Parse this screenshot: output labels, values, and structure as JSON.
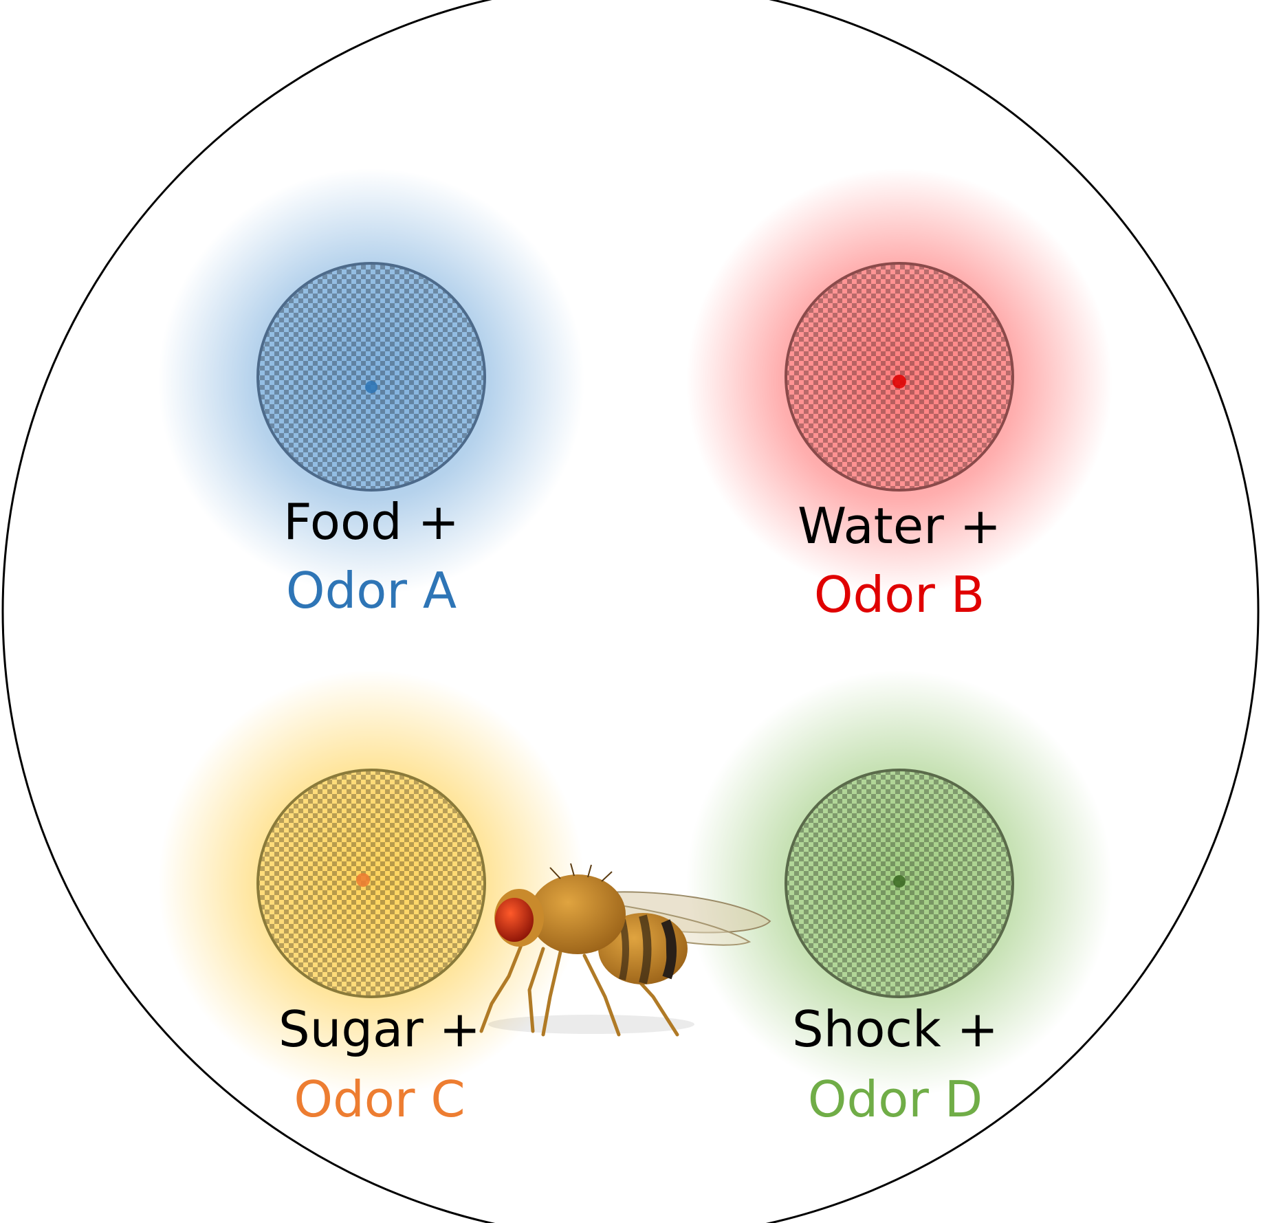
{
  "stations": [
    {
      "id": "food",
      "stimulus": "Food +",
      "odor": "Odor A",
      "glow_color": "#5b9bd5",
      "dish_color": "#4472c4",
      "center_color": "#2e75b6",
      "odor_color": "#2e75b6"
    },
    {
      "id": "water",
      "stimulus": "Water +",
      "odor": "Odor B",
      "glow_color": "#ff6b6b",
      "dish_color": "#d04545",
      "center_color": "#e00000",
      "odor_color": "#e00000"
    },
    {
      "id": "sugar",
      "stimulus": "Sugar +",
      "odor": "Odor C",
      "glow_color": "#ffd04d",
      "dish_color": "#c9a227",
      "center_color": "#ed7d31",
      "odor_color": "#ed7d31"
    },
    {
      "id": "shock",
      "stimulus": "Shock +",
      "odor": "Odor D",
      "glow_color": "#8fc46a",
      "dish_color": "#5f8f47",
      "center_color": "#3d6b25",
      "odor_color": "#70ad47"
    }
  ],
  "colors": {
    "arena_border": "#000000",
    "stimulus_text": "#000000"
  },
  "icons": {
    "fly": "fruit-fly-icon"
  }
}
